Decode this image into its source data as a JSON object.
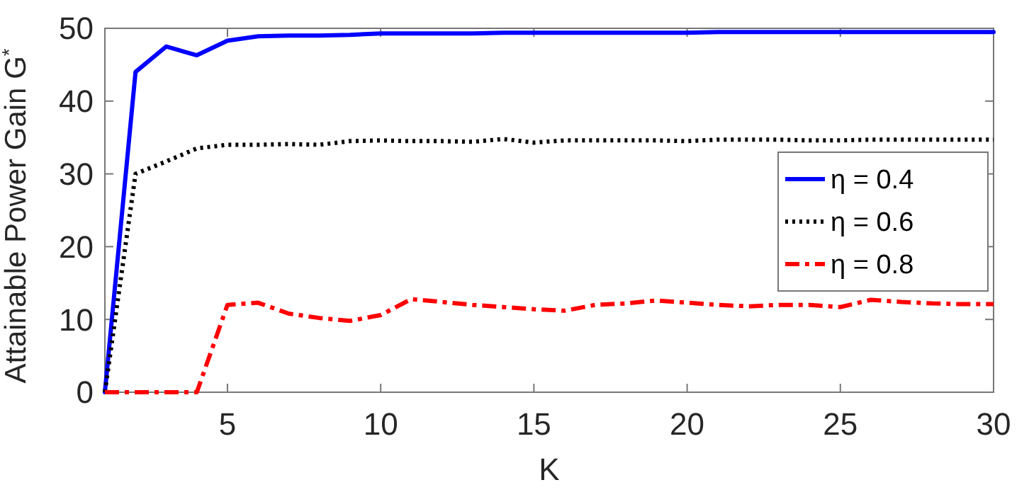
{
  "chart_data": {
    "type": "line",
    "xlabel": "K",
    "ylabel": "Attainable Power Gain G$^{*}$",
    "x": [
      1,
      2,
      3,
      4,
      5,
      6,
      7,
      8,
      9,
      10,
      11,
      12,
      13,
      14,
      15,
      16,
      17,
      18,
      19,
      20,
      21,
      22,
      23,
      24,
      25,
      26,
      27,
      28,
      29,
      30
    ],
    "series": [
      {
        "name": "η = 0.4",
        "color": "#0000ff",
        "line_style": "solid",
        "values": [
          0,
          44,
          47.5,
          46.3,
          48.3,
          48.9,
          49,
          49,
          49.1,
          49.3,
          49.3,
          49.3,
          49.3,
          49.4,
          49.4,
          49.4,
          49.4,
          49.4,
          49.4,
          49.4,
          49.5,
          49.5,
          49.5,
          49.5,
          49.5,
          49.5,
          49.5,
          49.5,
          49.5,
          49.5
        ]
      },
      {
        "name": "η = 0.6",
        "color": "#000000",
        "line_style": "dotted",
        "values": [
          0,
          30,
          31.7,
          33.5,
          34,
          34,
          34.1,
          34,
          34.5,
          34.6,
          34.5,
          34.5,
          34.4,
          34.8,
          34.3,
          34.6,
          34.6,
          34.6,
          34.6,
          34.5,
          34.7,
          34.7,
          34.7,
          34.6,
          34.6,
          34.7,
          34.7,
          34.7,
          34.7,
          34.7
        ]
      },
      {
        "name": "η = 0.8",
        "color": "#ff0000",
        "line_style": "dashed",
        "values": [
          0,
          0,
          0,
          0,
          12,
          12.3,
          10.8,
          10.2,
          9.8,
          10.6,
          12.8,
          12.4,
          12,
          11.7,
          11.4,
          11.2,
          12,
          12.2,
          12.6,
          12.3,
          12,
          11.8,
          12,
          12,
          11.7,
          12.7,
          12.4,
          12.2,
          12.1,
          12.1
        ]
      }
    ],
    "xlim": [
      1,
      30
    ],
    "xticks": [
      5,
      10,
      15,
      20,
      25,
      30
    ],
    "ylim": [
      0,
      50
    ],
    "yticks": [
      0,
      10,
      20,
      30,
      40,
      50
    ],
    "grid": false,
    "legend": "right"
  }
}
